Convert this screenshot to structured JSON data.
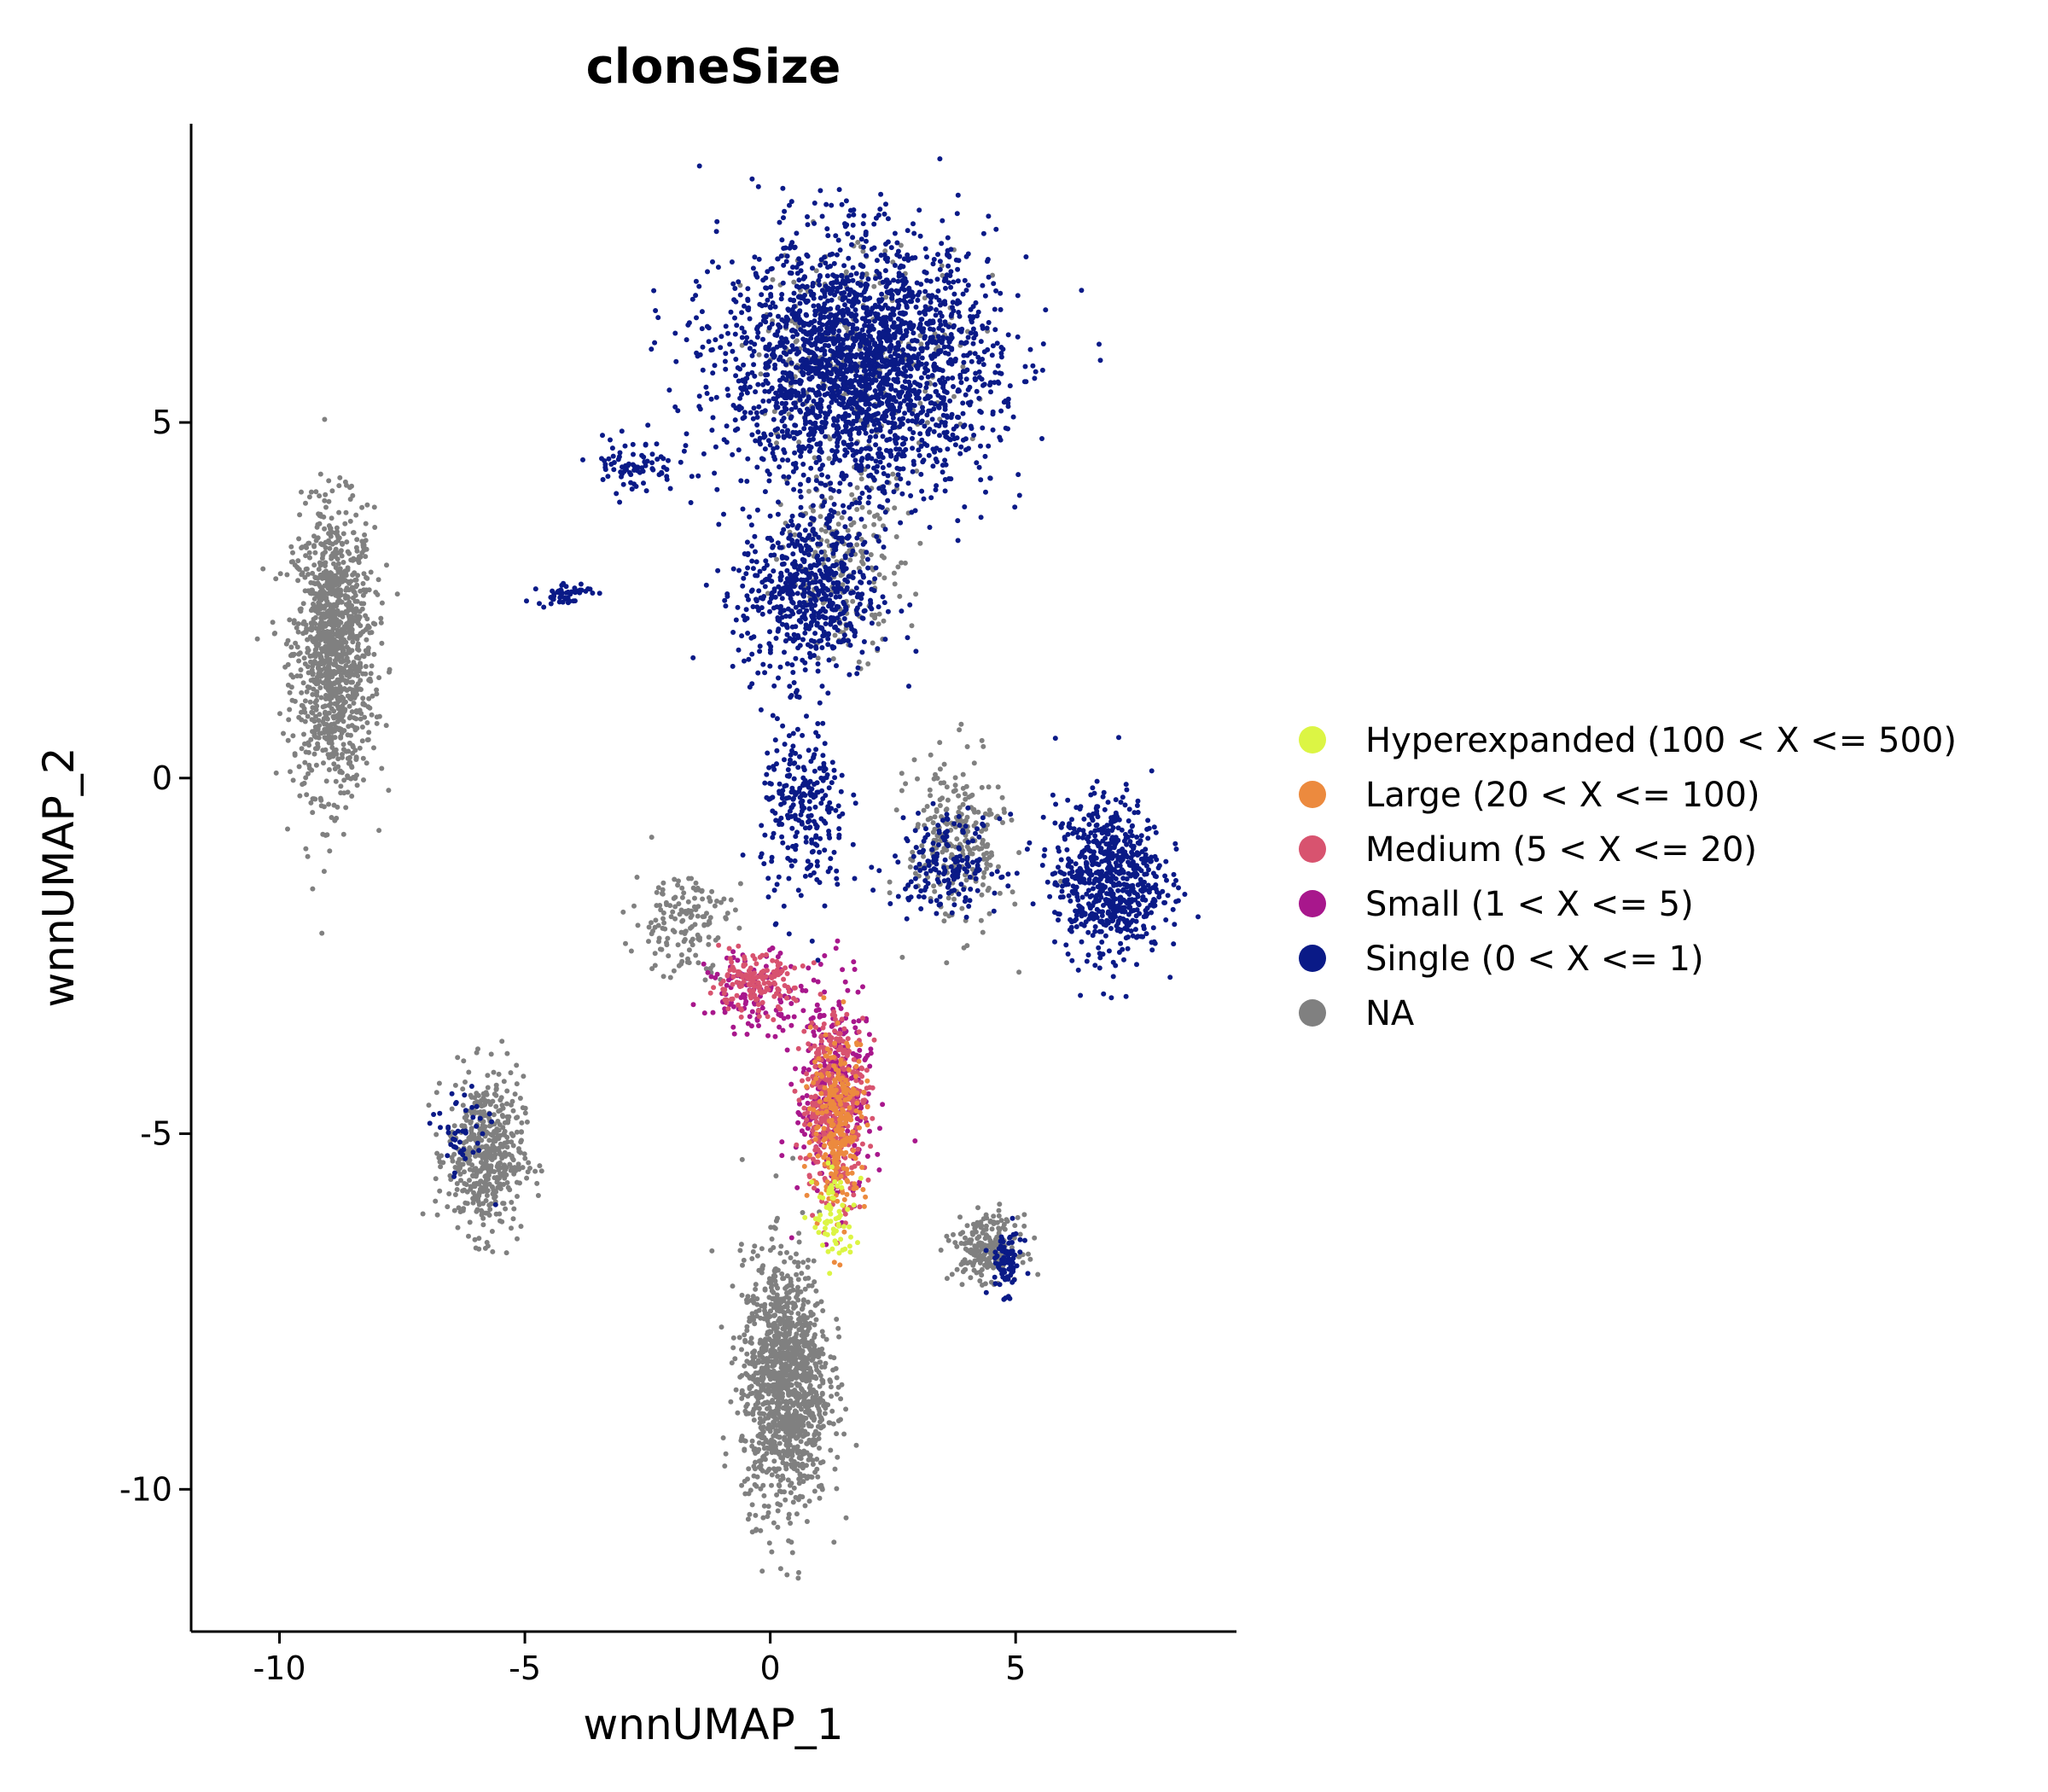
{
  "chart_data": {
    "type": "scatter",
    "title": "cloneSize",
    "xlabel": "wnnUMAP_1",
    "ylabel": "wnnUMAP_2",
    "xlim": [
      -11.8,
      9.5
    ],
    "ylim": [
      -12.0,
      9.2
    ],
    "x_ticks": [
      -10,
      -5,
      0,
      5
    ],
    "x_tick_labels": [
      "-10",
      "-5",
      "0",
      "5"
    ],
    "y_ticks": [
      -10,
      -5,
      0,
      5
    ],
    "y_tick_labels": [
      "-10",
      "-5",
      "0",
      "5"
    ],
    "grid": false,
    "legend_position": "right",
    "series": [
      {
        "name": "Hyperexpanded (100 < X <= 500)",
        "color": "#dcf544"
      },
      {
        "name": "Large (20 < X <= 100)",
        "color": "#ec8a3e"
      },
      {
        "name": "Medium (5 < X <= 20)",
        "color": "#d8536f"
      },
      {
        "name": "Small (1 < X <= 5)",
        "color": "#a8178c"
      },
      {
        "name": "Single (0 < X <= 1)",
        "color": "#0a1a87"
      },
      {
        "name": "NA",
        "color": "#808080"
      }
    ],
    "clusters": [
      {
        "series": "Single (0 < X <= 1)",
        "center": [
          1.8,
          5.8
        ],
        "spread": [
          2.5,
          1.6
        ],
        "count": 2400
      },
      {
        "series": "Single (0 < X <= 1)",
        "center": [
          0.8,
          2.6
        ],
        "spread": [
          1.3,
          1.1
        ],
        "count": 600
      },
      {
        "series": "Single (0 < X <= 1)",
        "center": [
          -2.8,
          4.4
        ],
        "spread": [
          0.8,
          0.35
        ],
        "count": 80
      },
      {
        "series": "Single (0 < X <= 1)",
        "center": [
          -4.2,
          2.6
        ],
        "spread": [
          0.5,
          0.15
        ],
        "count": 50
      },
      {
        "series": "Single (0 < X <= 1)",
        "center": [
          6.9,
          -1.4
        ],
        "spread": [
          1.0,
          1.0
        ],
        "count": 700
      },
      {
        "series": "Single (0 < X <= 1)",
        "center": [
          0.7,
          -0.5
        ],
        "spread": [
          0.8,
          1.2
        ],
        "count": 260
      },
      {
        "series": "Single (0 < X <= 1)",
        "center": [
          3.6,
          -1.2
        ],
        "spread": [
          1.0,
          0.6
        ],
        "count": 180
      },
      {
        "series": "Single (0 < X <= 1)",
        "center": [
          4.8,
          -6.8
        ],
        "spread": [
          0.3,
          0.4
        ],
        "count": 80
      },
      {
        "series": "Single (0 < X <= 1)",
        "center": [
          -6.3,
          -5.0
        ],
        "spread": [
          0.5,
          0.6
        ],
        "count": 45
      },
      {
        "series": "NA",
        "center": [
          -8.9,
          1.8
        ],
        "spread": [
          0.75,
          1.8
        ],
        "count": 1200
      },
      {
        "series": "NA",
        "center": [
          -5.8,
          -5.3
        ],
        "spread": [
          0.7,
          1.0
        ],
        "count": 500
      },
      {
        "series": "NA",
        "center": [
          0.3,
          -8.5
        ],
        "spread": [
          0.8,
          1.6
        ],
        "count": 1300
      },
      {
        "series": "NA",
        "center": [
          4.4,
          -6.6
        ],
        "spread": [
          0.6,
          0.4
        ],
        "count": 220
      },
      {
        "series": "NA",
        "center": [
          3.8,
          -0.9
        ],
        "spread": [
          0.9,
          1.1
        ],
        "count": 260
      },
      {
        "series": "NA",
        "center": [
          1.5,
          3.0
        ],
        "spread": [
          1.1,
          1.1
        ],
        "count": 200
      },
      {
        "series": "NA",
        "center": [
          1.8,
          6.0
        ],
        "spread": [
          2.0,
          1.4
        ],
        "count": 250
      },
      {
        "series": "NA",
        "center": [
          -1.8,
          -2.0
        ],
        "spread": [
          0.9,
          0.7
        ],
        "count": 150
      },
      {
        "series": "Medium (5 < X <= 20)",
        "center": [
          1.3,
          -4.6
        ],
        "spread": [
          0.6,
          1.2
        ],
        "count": 380
      },
      {
        "series": "Medium (5 < X <= 20)",
        "center": [
          -0.4,
          -2.9
        ],
        "spread": [
          0.8,
          0.35
        ],
        "count": 150
      },
      {
        "series": "Small (1 < X <= 5)",
        "center": [
          1.3,
          -4.4
        ],
        "spread": [
          0.7,
          1.4
        ],
        "count": 320
      },
      {
        "series": "Small (1 < X <= 5)",
        "center": [
          -0.3,
          -3.0
        ],
        "spread": [
          0.9,
          0.5
        ],
        "count": 120
      },
      {
        "series": "Large (20 < X <= 100)",
        "center": [
          1.4,
          -4.8
        ],
        "spread": [
          0.5,
          1.1
        ],
        "count": 260
      },
      {
        "series": "Hyperexpanded (100 < X <= 500)",
        "center": [
          1.3,
          -6.2
        ],
        "spread": [
          0.4,
          0.6
        ],
        "count": 70
      }
    ]
  }
}
